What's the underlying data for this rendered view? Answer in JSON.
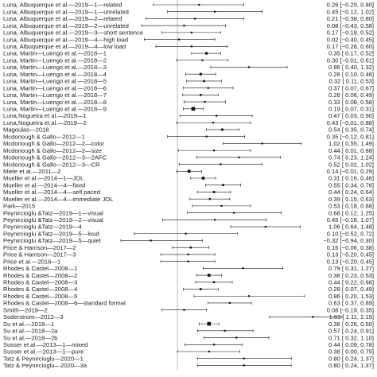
{
  "chart_data": {
    "type": "forest",
    "title": "",
    "xlabel": "",
    "ylabel": "",
    "xlim": [
      -0.7,
      2.0
    ],
    "reference_line": 0,
    "colors": {
      "marker": "#111111",
      "line": "#111111",
      "reference": "#aaaaaa",
      "text": "#222222"
    },
    "studies": [
      {
        "label": "Luna, Albuquerque et al.—2019—1—related",
        "est": 0.26,
        "lo": -0.29,
        "hi": 0.8,
        "text": "0.26 [−0.29, 0.80]"
      },
      {
        "label": "Luna, Albuquerque et al.—2019—1—unrelated",
        "est": 0.45,
        "lo": -0.12,
        "hi": 1.02,
        "text": "0.45 [−0.12, 1.02]"
      },
      {
        "label": "Luna, Albuquerque et al.—2019—2—related",
        "est": 0.21,
        "lo": -0.38,
        "hi": 0.8,
        "text": "0.21 [−0.38, 0.80]"
      },
      {
        "label": "Luna, Albuquerque et al.—2019—2—unrelated",
        "est": 0.08,
        "lo": -0.43,
        "hi": 0.58,
        "text": "0.08 [−0.43, 0.58]"
      },
      {
        "label": "Luna, Albuquerque et al.—2019—3—short sentence",
        "est": 0.17,
        "lo": -0.19,
        "hi": 0.52,
        "text": "0.17 [−0.19, 0.52]"
      },
      {
        "label": "Luna, Albuquerque et al.—2019—4—high load",
        "est": 0.02,
        "lo": -0.4,
        "hi": 0.45,
        "text": "0.02 [−0.40, 0.45]"
      },
      {
        "label": "Luna, Albuquerque et al.—2019—4—low load",
        "est": 0.17,
        "lo": -0.26,
        "hi": 0.6,
        "text": "0.17 [−0.26, 0.60]"
      },
      {
        "label": "Luna, Martin—Luengo et al.—2018—1",
        "est": 0.35,
        "lo": 0.17,
        "hi": 0.52,
        "text": "0.35 [ 0.17, 0.52]"
      },
      {
        "label": "Luna, Martin—Luengo et al.—2018—2",
        "est": 0.3,
        "lo": -0.01,
        "hi": 0.61,
        "text": "0.30 [−0.01, 0.61]"
      },
      {
        "label": "Luna, Martin—Luengo et al.—2018—3",
        "est": 0.86,
        "lo": 0.4,
        "hi": 1.32,
        "text": "0.86 [ 0.40, 1.32]"
      },
      {
        "label": "Luna, Martin—Luengo et al.—2018—4",
        "est": 0.28,
        "lo": 0.1,
        "hi": 0.46,
        "text": "0.28 [ 0.10, 0.46]"
      },
      {
        "label": "Luna, Martin—Luengo et al.—2018—5",
        "est": 0.32,
        "lo": 0.11,
        "hi": 0.53,
        "text": "0.32 [ 0.11, 0.53]"
      },
      {
        "label": "Luna, Martin—Luengo et al.—2018—6",
        "est": 0.37,
        "lo": 0.07,
        "hi": 0.67,
        "text": "0.37 [ 0.07, 0.67]"
      },
      {
        "label": "Luna, Martin—Luengo et al.—2018—7",
        "est": 0.28,
        "lo": 0.06,
        "hi": 0.49,
        "text": "0.28 [ 0.06, 0.49]"
      },
      {
        "label": "Luna, Martin—Luengo et al.—2018—8",
        "est": 0.33,
        "lo": 0.08,
        "hi": 0.58,
        "text": "0.33 [ 0.08, 0.58]"
      },
      {
        "label": "Luna, Martin—Luengo et al.—2018—9",
        "est": 0.19,
        "lo": 0.07,
        "hi": 0.31,
        "text": "0.19 [ 0.07, 0.31]"
      },
      {
        "label": "Luna,Nogueira et al.—2019—1",
        "est": 0.47,
        "lo": 0.03,
        "hi": 0.9,
        "text": "0.47 [ 0.03, 0.90]"
      },
      {
        "label": "Luna,Nogueira et al.—2019—2",
        "est": 0.43,
        "lo": -0.01,
        "hi": 0.88,
        "text": "0.43 [−0.01, 0.88]"
      },
      {
        "label": "Magoulas—2018",
        "est": 0.54,
        "lo": 0.35,
        "hi": 0.74,
        "text": "0.54 [ 0.35, 0.74]"
      },
      {
        "label": "Mcdonough & Gallo—2012—1",
        "est": 0.35,
        "lo": -0.12,
        "hi": 0.81,
        "text": "0.35 [−0.12, 0.81]"
      },
      {
        "label": "Mcdonough & Gallo—2012—2—color",
        "est": 1.02,
        "lo": 0.55,
        "hi": 1.49,
        "text": "1.02 [ 0.55, 1.49]"
      },
      {
        "label": "Mcdonough & Gallo—2012—2—size",
        "est": 0.44,
        "lo": 0.01,
        "hi": 0.88,
        "text": "0.44 [ 0.01, 0.88]"
      },
      {
        "label": "Mcdonough & Gallo—2012—3—2AFC",
        "est": 0.74,
        "lo": 0.23,
        "hi": 1.24,
        "text": "0.74 [ 0.23, 1.24]"
      },
      {
        "label": "Mcdonough & Gallo—2012—3—CR",
        "est": 0.52,
        "lo": 0.02,
        "hi": 1.02,
        "text": "0.52 [ 0.02, 1.02]"
      },
      {
        "label": "Miele et al.—2011—2",
        "est": 0.14,
        "lo": -0.01,
        "hi": 0.29,
        "text": "0.14 [−0.01, 0.29]"
      },
      {
        "label": "Mueller et al.—2014—1—JOL",
        "est": 0.31,
        "lo": 0.16,
        "hi": 0.46,
        "text": "0.31 [ 0.16, 0.46]"
      },
      {
        "label": "Mueller et al.—2014—4—fixed",
        "est": 0.55,
        "lo": 0.34,
        "hi": 0.76,
        "text": "0.55 [ 0.34, 0.76]"
      },
      {
        "label": "Mueller et al.—2014—4—self paced",
        "est": 0.44,
        "lo": 0.24,
        "hi": 0.64,
        "text": "0.44 [ 0.24, 0.64]"
      },
      {
        "label": "Mueller et al.—2014—4—immediate JOL",
        "est": 0.39,
        "lo": 0.15,
        "hi": 0.63,
        "text": "0.39 [ 0.15, 0.63]"
      },
      {
        "label": "Park—2015",
        "est": 0.53,
        "lo": 0.18,
        "hi": 0.88,
        "text": "0.53 [ 0.18, 0.88]"
      },
      {
        "label": "Peynircioglu &Tatz—2019—1—visual",
        "est": 0.68,
        "lo": 0.12,
        "hi": 1.25,
        "text": "0.68 [ 0.12, 1.25]"
      },
      {
        "label": "Peynircioglu &Tatz—2019—2—visual",
        "est": 0.45,
        "lo": -0.18,
        "hi": 1.07,
        "text": "0.45 [−0.18, 1.07]"
      },
      {
        "label": "Peynircioglu &Tatz—2019—4",
        "est": 1.06,
        "lo": 0.64,
        "hi": 1.48,
        "text": "1.06 [ 0.64, 1.48]"
      },
      {
        "label": "Peynircioglu &Tatz—2019—5—loud",
        "est": 0.1,
        "lo": -0.52,
        "hi": 0.72,
        "text": "0.10 [−0.52, 0.72]"
      },
      {
        "label": "Peynircioglu &Tatz—2019—5—quiet",
        "est": -0.32,
        "lo": -0.94,
        "hi": 0.3,
        "text": "−0.32 [−0.94, 0.30]"
      },
      {
        "label": "Price & Harrison—2017—2",
        "est": 0.16,
        "lo": -0.06,
        "hi": 0.38,
        "text": "0.16 [−0.06, 0.38]"
      },
      {
        "label": "Price & Harrison—2017—3",
        "est": 0.13,
        "lo": -0.2,
        "hi": 0.45,
        "text": "0.13 [−0.20, 0.45]"
      },
      {
        "label": "Price et al.—2016—1",
        "est": 0.13,
        "lo": -0.2,
        "hi": 0.45,
        "text": "0.13 [−0.20, 0.45]"
      },
      {
        "label": "Rhodes & Castel—2008—1",
        "est": 0.79,
        "lo": 0.31,
        "hi": 1.27,
        "text": "0.79 [ 0.31, 1.27]"
      },
      {
        "label": "Rhodes & Castel—2008—2",
        "est": 0.38,
        "lo": 0.23,
        "hi": 0.53,
        "text": "0.38 [ 0.23, 0.53]"
      },
      {
        "label": "Rhodes & Castel—2008—3",
        "est": 0.44,
        "lo": 0.22,
        "hi": 0.66,
        "text": "0.44 [ 0.22, 0.66]"
      },
      {
        "label": "Rhodes & Castel—2008—4",
        "est": 0.28,
        "lo": 0.07,
        "hi": 0.49,
        "text": "0.28 [ 0.07, 0.49]"
      },
      {
        "label": "Rhodes & Castel—2008—5",
        "est": 0.86,
        "lo": 0.2,
        "hi": 1.53,
        "text": "0.86 [ 0.20, 1.53]"
      },
      {
        "label": "Rhodes & Castel—2008—6—standard format",
        "est": 0.63,
        "lo": 0.37,
        "hi": 0.89,
        "text": "0.63 [ 0.37, 0.89]"
      },
      {
        "label": "Smith—2019—2",
        "est": 0.08,
        "lo": -0.19,
        "hi": 0.35,
        "text": "0.08 [−0.19, 0.35]"
      },
      {
        "label": "Soderstrom—2012—3",
        "est": 1.63,
        "lo": 1.11,
        "hi": 2.15,
        "text": "1.63 [ 1.11, 2.15]"
      },
      {
        "label": "Su et al.—2018—1",
        "est": 0.38,
        "lo": 0.26,
        "hi": 0.5,
        "text": "0.38 [ 0.26, 0.50]"
      },
      {
        "label": "Su et al.—2018—2a",
        "est": 0.57,
        "lo": 0.24,
        "hi": 0.91,
        "text": "0.57 [ 0.24, 0.91]"
      },
      {
        "label": "Su et al.—2018—2b",
        "est": 0.71,
        "lo": 0.32,
        "hi": 1.1,
        "text": "0.71 [ 0.32, 1.10]"
      },
      {
        "label": "Susser et al.—2013—1—mixed",
        "est": 0.44,
        "lo": 0.09,
        "hi": 0.78,
        "text": "0.44 [ 0.09, 0.78]"
      },
      {
        "label": "Susser et al.—2013—1—pure",
        "est": 0.38,
        "lo": 0.0,
        "hi": 0.75,
        "text": "0.38 [ 0.00, 0.75]"
      },
      {
        "label": "Tatz & Peynircioglu—2020—1",
        "est": 0.8,
        "lo": 0.24,
        "hi": 1.37,
        "text": "0.80 [ 0.24, 1.37]"
      },
      {
        "label": "Tatz & Peynircioglu—2020—3a",
        "est": 0.8,
        "lo": 0.24,
        "hi": 1.37,
        "text": "0.80 [ 0.24, 1.37]"
      }
    ]
  }
}
